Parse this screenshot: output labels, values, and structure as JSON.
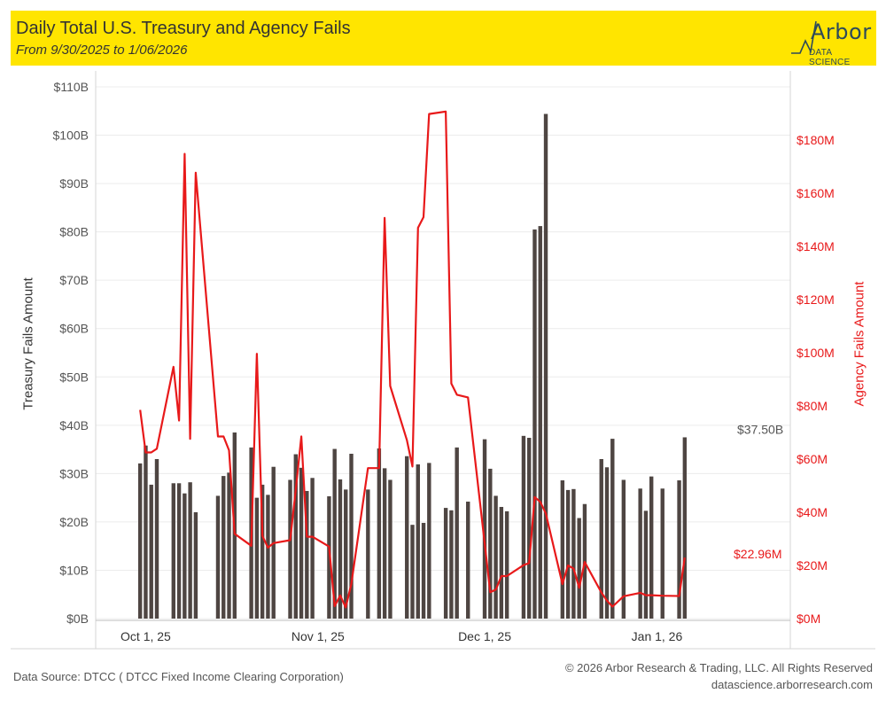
{
  "header": {
    "title": "Daily Total U.S. Treasury and Agency Fails",
    "subtitle": "From 9/30/2025 to 1/06/2026",
    "logo_text": "Arbor",
    "logo_sub": "DATA SCIENCE"
  },
  "footer": {
    "source": "Data Source: DTCC ( DTCC Fixed Income Clearing Corporation)",
    "copyright": "© 2026 Arbor Research & Trading, LLC. All Rights Reserved",
    "site": "datascience.arborresearch.com"
  },
  "colors": {
    "bar": "#4e4542",
    "line": "#e8191a",
    "header": "#ffe500",
    "grid": "#ececec"
  },
  "chart_data": {
    "type": "bar+line",
    "x_range": [
      "2025-09-22",
      "2026-01-25"
    ],
    "x_ticks": [
      {
        "date": "2025-10-01",
        "label": "Oct 1, 25"
      },
      {
        "date": "2025-11-01",
        "label": "Nov 1, 25"
      },
      {
        "date": "2025-12-01",
        "label": "Dec 1, 25"
      },
      {
        "date": "2026-01-01",
        "label": "Jan 1, 26"
      }
    ],
    "ylabel_left": "Treasury Fails Amount",
    "ylabel_right": "Agency Fails Amount",
    "ylim_left": [
      0,
      110
    ],
    "ylim_right": [
      0,
      200
    ],
    "left_ticks": [
      "$0B",
      "$10B",
      "$20B",
      "$30B",
      "$40B",
      "$50B",
      "$60B",
      "$70B",
      "$80B",
      "$90B",
      "$100B",
      "$110B"
    ],
    "right_ticks": [
      "$0M",
      "$20M",
      "$40M",
      "$60M",
      "$80M",
      "$100M",
      "$120M",
      "$140M",
      "$160M",
      "$180M"
    ],
    "grid": true,
    "last_treasury_label": "$37.50B",
    "last_agency_label": "$22.96M",
    "series": [
      {
        "name": "Treasury Fails Amount",
        "axis": "left",
        "dates": [
          "2025-09-30",
          "2025-10-01",
          "2025-10-02",
          "2025-10-03",
          "2025-10-06",
          "2025-10-07",
          "2025-10-08",
          "2025-10-09",
          "2025-10-10",
          "2025-10-14",
          "2025-10-15",
          "2025-10-16",
          "2025-10-17",
          "2025-10-20",
          "2025-10-21",
          "2025-10-22",
          "2025-10-23",
          "2025-10-24",
          "2025-10-27",
          "2025-10-28",
          "2025-10-29",
          "2025-10-30",
          "2025-10-31",
          "2025-11-03",
          "2025-11-04",
          "2025-11-05",
          "2025-11-06",
          "2025-11-07",
          "2025-11-10",
          "2025-11-12",
          "2025-11-13",
          "2025-11-14",
          "2025-11-17",
          "2025-11-18",
          "2025-11-19",
          "2025-11-20",
          "2025-11-21",
          "2025-11-24",
          "2025-11-25",
          "2025-11-26",
          "2025-11-28",
          "2025-12-01",
          "2025-12-02",
          "2025-12-03",
          "2025-12-04",
          "2025-12-05",
          "2025-12-08",
          "2025-12-09",
          "2025-12-10",
          "2025-12-11",
          "2025-12-12",
          "2025-12-15",
          "2025-12-16",
          "2025-12-17",
          "2025-12-18",
          "2025-12-19",
          "2025-12-22",
          "2025-12-23",
          "2025-12-24",
          "2025-12-26",
          "2025-12-29",
          "2025-12-30",
          "2025-12-31",
          "2026-01-02",
          "2026-01-05",
          "2026-01-06"
        ],
        "values": [
          32.1,
          35.8,
          27.7,
          33.0,
          28.0,
          28.0,
          25.9,
          28.2,
          22.0,
          25.4,
          29.5,
          30.2,
          38.5,
          35.4,
          25.0,
          27.7,
          25.6,
          31.4,
          28.7,
          34.0,
          31.2,
          26.4,
          29.1,
          25.3,
          35.1,
          28.8,
          26.7,
          34.1,
          26.7,
          35.2,
          31.1,
          28.7,
          33.6,
          19.4,
          31.9,
          19.8,
          32.2,
          22.9,
          22.4,
          35.4,
          24.2,
          37.1,
          31.0,
          25.4,
          23.1,
          22.2,
          37.8,
          37.4,
          80.5,
          81.2,
          104.4,
          28.6,
          26.6,
          26.8,
          20.8,
          23.7,
          33.0,
          31.3,
          37.2,
          28.7,
          26.9,
          22.3,
          29.4,
          26.9,
          28.6,
          37.5
        ]
      },
      {
        "name": "Agency Fails Amount",
        "axis": "right",
        "dates": [
          "2025-09-30",
          "2025-10-01",
          "2025-10-02",
          "2025-10-03",
          "2025-10-06",
          "2025-10-07",
          "2025-10-08",
          "2025-10-09",
          "2025-10-10",
          "2025-10-14",
          "2025-10-15",
          "2025-10-16",
          "2025-10-17",
          "2025-10-20",
          "2025-10-21",
          "2025-10-22",
          "2025-10-23",
          "2025-10-24",
          "2025-10-27",
          "2025-10-28",
          "2025-10-29",
          "2025-10-30",
          "2025-10-31",
          "2025-11-03",
          "2025-11-04",
          "2025-11-05",
          "2025-11-06",
          "2025-11-07",
          "2025-11-10",
          "2025-11-12",
          "2025-11-13",
          "2025-11-14",
          "2025-11-17",
          "2025-11-18",
          "2025-11-19",
          "2025-11-20",
          "2025-11-21",
          "2025-11-24",
          "2025-11-25",
          "2025-11-26",
          "2025-11-28",
          "2025-12-01",
          "2025-12-02",
          "2025-12-03",
          "2025-12-04",
          "2025-12-05",
          "2025-12-08",
          "2025-12-09",
          "2025-12-10",
          "2025-12-11",
          "2025-12-12",
          "2025-12-15",
          "2025-12-16",
          "2025-12-17",
          "2025-12-18",
          "2025-12-19",
          "2025-12-22",
          "2025-12-23",
          "2025-12-24",
          "2025-12-26",
          "2025-12-29",
          "2025-12-30",
          "2025-12-31",
          "2026-01-02",
          "2026-01-05",
          "2026-01-06"
        ],
        "values": [
          78.5,
          62.5,
          62.5,
          63.9,
          94.7,
          74.5,
          174.8,
          67.6,
          167.7,
          68.5,
          68.5,
          63.3,
          31.9,
          27.4,
          99.6,
          31.1,
          26.7,
          28.4,
          29.5,
          48.4,
          68.5,
          30.8,
          30.8,
          27.1,
          4.7,
          8.7,
          4.2,
          13.0,
          56.6,
          56.6,
          150.7,
          87.5,
          67.2,
          57.2,
          147.0,
          151.0,
          189.8,
          190.7,
          88.4,
          84.2,
          83.2,
          28.4,
          9.9,
          10.9,
          16.0,
          16.0,
          20.1,
          20.9,
          45.7,
          43.9,
          39.6,
          13.0,
          20.0,
          18.8,
          11.6,
          21.3,
          9.8,
          6.8,
          4.5,
          8.4,
          9.7,
          8.8,
          8.8,
          8.6,
          8.5,
          22.96
        ]
      }
    ]
  }
}
